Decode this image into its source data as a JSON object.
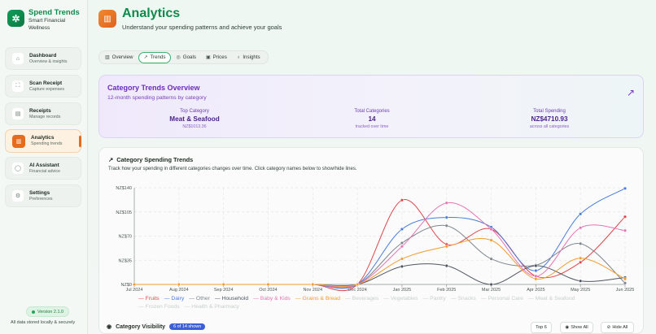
{
  "brand": {
    "title": "Spend Trends",
    "subtitle": "Smart Financial Wellness",
    "logo_icon": "sparkle-icon"
  },
  "sidebar": {
    "items": [
      {
        "label": "Dashboard",
        "desc": "Overview & insights",
        "icon": "home-icon",
        "glyph": "⌂"
      },
      {
        "label": "Scan Receipt",
        "desc": "Capture expenses",
        "icon": "scan-icon",
        "glyph": "⛶"
      },
      {
        "label": "Receipts",
        "desc": "Manage records",
        "icon": "receipt-icon",
        "glyph": "▤"
      },
      {
        "label": "Analytics",
        "desc": "Spending trends",
        "icon": "bar-chart-icon",
        "glyph": "▥"
      },
      {
        "label": "AI Assistant",
        "desc": "Financial advice",
        "icon": "chat-icon",
        "glyph": "◯"
      },
      {
        "label": "Settings",
        "desc": "Preferences",
        "icon": "gear-icon",
        "glyph": "⚙"
      }
    ],
    "active": "Analytics",
    "version": "Version 2.1.0",
    "note": "All data stored locally & securely"
  },
  "header": {
    "title": "Analytics",
    "subtitle": "Understand your spending patterns and achieve your goals"
  },
  "tabs": [
    {
      "label": "Overview",
      "icon": "bar-chart-icon",
      "glyph": "▥"
    },
    {
      "label": "Trends",
      "icon": "trend-up-icon",
      "glyph": "↗"
    },
    {
      "label": "Goals",
      "icon": "target-icon",
      "glyph": "◎"
    },
    {
      "label": "Prices",
      "icon": "tag-icon",
      "glyph": "▣"
    },
    {
      "label": "Insights",
      "icon": "lightbulb-icon",
      "glyph": "♁"
    }
  ],
  "active_tab": "Trends",
  "overview": {
    "title": "Category Trends Overview",
    "subtitle": "12-month spending patterns by category",
    "stats": [
      {
        "label": "Top Category",
        "value": "Meat & Seafood",
        "note": "NZ$1013.36"
      },
      {
        "label": "Total Categories",
        "value": "14",
        "note": "tracked over time"
      },
      {
        "label": "Total Spending",
        "value": "NZ$4710.93",
        "note": "across all categories"
      }
    ]
  },
  "trends_card": {
    "title": "Category Spending Trends",
    "description": "Track how your spending in different categories changes over time. Click category names below to show/hide lines."
  },
  "chart_data": {
    "type": "line",
    "x": [
      "Jul 2024",
      "Aug 2024",
      "Sep 2024",
      "Oct 2024",
      "Nov 2024",
      "Dec 2024",
      "Jan 2025",
      "Feb 2025",
      "Mar 2025",
      "Apr 2025",
      "May 2025",
      "Jun 2025"
    ],
    "ylim": [
      0,
      140
    ],
    "yticks": [
      "NZ$0",
      "NZ$35",
      "NZ$70",
      "NZ$105",
      "NZ$140"
    ],
    "grid": true,
    "series": [
      {
        "name": "Fruits",
        "color": "#e0474c",
        "visible": true,
        "values": [
          0,
          0,
          0,
          0,
          0,
          0,
          122,
          58,
          80,
          12,
          32,
          98
        ]
      },
      {
        "name": "Dairy",
        "color": "#4a7bdc",
        "visible": true,
        "values": [
          0,
          0,
          0,
          0,
          0,
          0,
          80,
          97,
          83,
          20,
          102,
          139
        ]
      },
      {
        "name": "Other",
        "color": "#7e858c",
        "visible": true,
        "values": [
          0,
          0,
          0,
          0,
          0,
          0,
          60,
          85,
          37,
          28,
          59,
          2
        ]
      },
      {
        "name": "Household",
        "color": "#4f5560",
        "visible": true,
        "values": [
          0,
          0,
          0,
          0,
          0,
          0,
          26,
          27,
          0,
          27,
          5,
          10
        ]
      },
      {
        "name": "Baby & Kids",
        "color": "#e873b4",
        "visible": true,
        "values": [
          0,
          0,
          0,
          0,
          0,
          0,
          55,
          118,
          80,
          12,
          82,
          78
        ]
      },
      {
        "name": "Grains & Bread",
        "color": "#f29b2f",
        "visible": true,
        "values": [
          0,
          0,
          0,
          0,
          0,
          0,
          37,
          55,
          64,
          8,
          38,
          8
        ]
      },
      {
        "name": "Beverages",
        "visible": false
      },
      {
        "name": "Vegetables",
        "visible": false
      },
      {
        "name": "Pantry",
        "visible": false
      },
      {
        "name": "Snacks",
        "visible": false
      },
      {
        "name": "Personal Care",
        "visible": false
      },
      {
        "name": "Meat & Seafood",
        "visible": false
      },
      {
        "name": "Frozen Foods",
        "visible": false
      },
      {
        "name": "Health & Pharmacy",
        "visible": false
      }
    ]
  },
  "visibility": {
    "title": "Category Visibility",
    "badge": "6 of 14 shown",
    "buttons": {
      "top": "Top 6",
      "show_all": "Show All",
      "hide_all": "Hide All"
    }
  }
}
